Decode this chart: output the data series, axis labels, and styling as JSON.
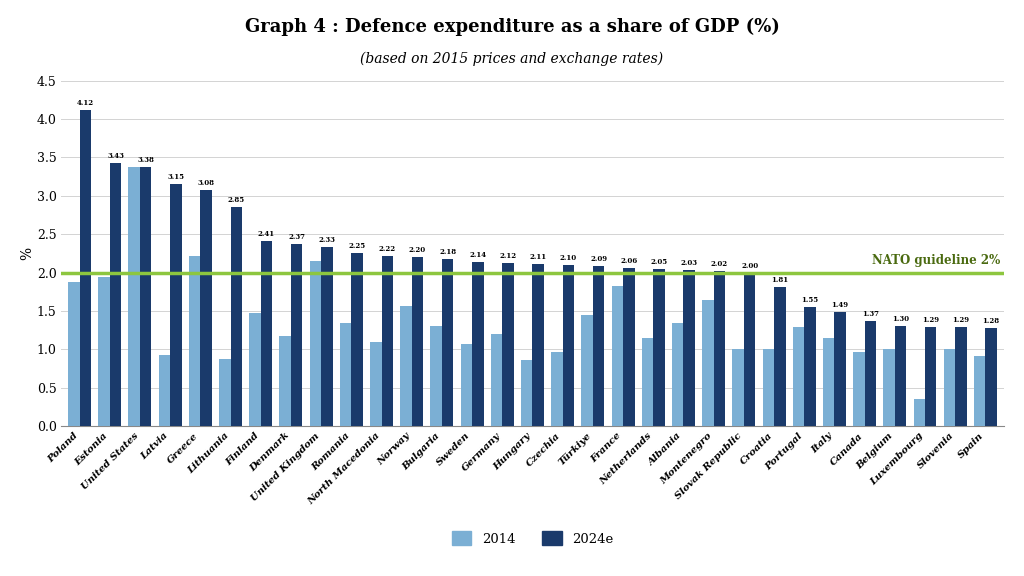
{
  "title": "Graph 4 : Defence expenditure as a share of GDP (%)",
  "subtitle": "(based on 2015 prices and exchange rates)",
  "ylabel": "%",
  "ylim": [
    0,
    4.5
  ],
  "yticks": [
    0.0,
    0.5,
    1.0,
    1.5,
    2.0,
    2.5,
    3.0,
    3.5,
    4.0,
    4.5
  ],
  "nato_guideline": 2.0,
  "nato_label": "NATO guideline 2%",
  "color_2014": "#7bafd4",
  "color_2024": "#1a3a6b",
  "legend_2014": "2014",
  "legend_2024": "2024e",
  "countries": [
    "Poland",
    "Estonia",
    "United States",
    "Latvia",
    "Greece",
    "Lithuania",
    "Finland",
    "Denmark",
    "United Kingdom",
    "Romania",
    "North Macedonia",
    "Norway",
    "Bulgaria",
    "Sweden",
    "Germany",
    "Hungary",
    "Czechia",
    "Türkiye",
    "France",
    "Netherlands",
    "Albania",
    "Montenegro",
    "Slovak Republic",
    "Croatia",
    "Portugal",
    "Italy",
    "Canada",
    "Belgium",
    "Luxembourg",
    "Slovenia",
    "Spain"
  ],
  "values_2024": [
    4.12,
    3.43,
    3.38,
    3.15,
    3.08,
    2.85,
    2.41,
    2.37,
    2.33,
    2.25,
    2.22,
    2.2,
    2.18,
    2.14,
    2.12,
    2.11,
    2.1,
    2.09,
    2.06,
    2.05,
    2.03,
    2.02,
    2.0,
    1.81,
    1.55,
    1.49,
    1.37,
    1.3,
    1.29,
    1.29,
    1.28
  ],
  "values_2014": [
    1.88,
    1.94,
    3.38,
    0.93,
    2.22,
    0.88,
    1.47,
    1.17,
    2.15,
    1.35,
    1.1,
    1.57,
    1.3,
    1.07,
    1.2,
    0.86,
    0.97,
    1.45,
    1.82,
    1.15,
    1.35,
    1.65,
    1.01,
    1.0,
    1.29,
    1.15,
    0.97,
    1.0,
    0.35,
    1.0,
    0.92
  ]
}
